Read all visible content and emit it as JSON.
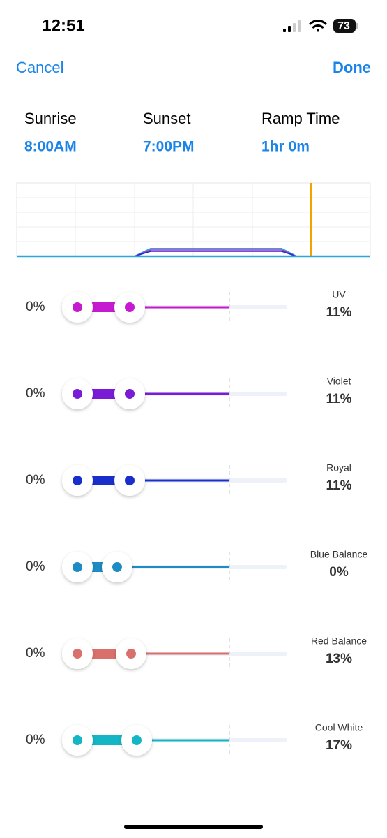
{
  "status_bar": {
    "time": "12:51",
    "battery": "73"
  },
  "nav": {
    "cancel": "Cancel",
    "done": "Done"
  },
  "schedule": [
    {
      "label": "Sunrise",
      "value": "8:00AM"
    },
    {
      "label": "Sunset",
      "value": "7:00PM"
    },
    {
      "label": "Ramp Time",
      "value": "1hr 0m"
    }
  ],
  "channels": [
    {
      "name": "UV",
      "min": "0%",
      "value": "11%"
    },
    {
      "name": "Violet",
      "min": "0%",
      "value": "11%"
    },
    {
      "name": "Royal",
      "min": "0%",
      "value": "11%"
    },
    {
      "name": "Blue Balance",
      "min": "0%",
      "value": "0%"
    },
    {
      "name": "Red Balance",
      "min": "0%",
      "value": "13%"
    },
    {
      "name": "Cool White",
      "min": "0%",
      "value": "17%"
    }
  ]
}
